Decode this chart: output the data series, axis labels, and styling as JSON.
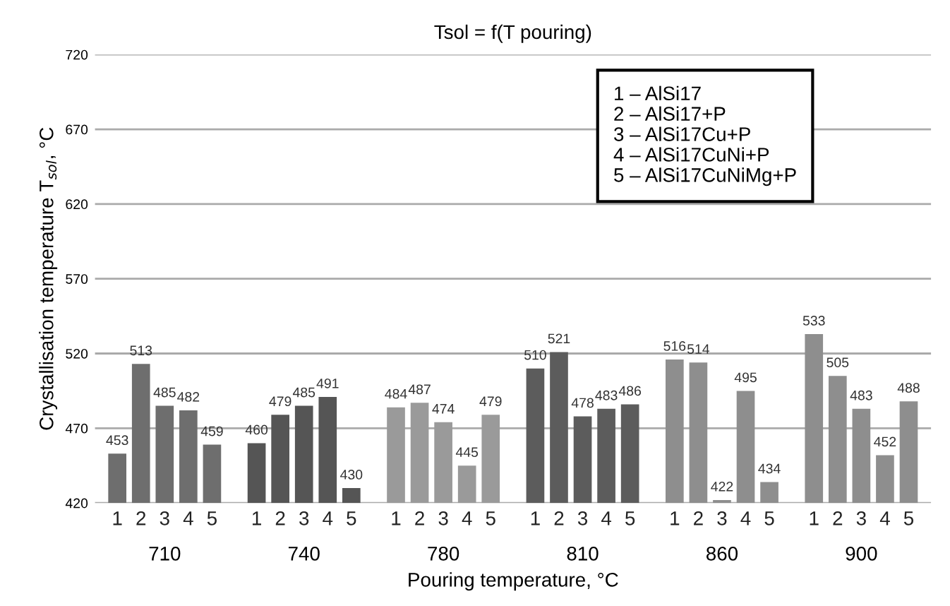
{
  "chart_data": {
    "type": "bar",
    "subtitle": "Tsol = f(T pouring)",
    "xlabel": "Pouring temperature, °C",
    "ylabel": "Crystallisation temperature T$_{sol}$, °C",
    "categories": [
      "710",
      "740",
      "780",
      "810",
      "860",
      "900"
    ],
    "series": [
      {
        "name": "1",
        "colors": [
          "#6e6e6e",
          "#555555",
          "#9a9a9a",
          "#5c5c5c",
          "#8e8e8e",
          "#8e8e8e"
        ],
        "values": [
          453,
          460,
          484,
          510,
          516,
          533
        ]
      },
      {
        "name": "2",
        "colors": [
          "#6e6e6e",
          "#555555",
          "#9a9a9a",
          "#5c5c5c",
          "#8e8e8e",
          "#8e8e8e"
        ],
        "values": [
          513,
          479,
          487,
          521,
          514,
          505
        ]
      },
      {
        "name": "3",
        "colors": [
          "#6e6e6e",
          "#555555",
          "#9a9a9a",
          "#5c5c5c",
          "#8e8e8e",
          "#8e8e8e"
        ],
        "values": [
          485,
          485,
          474,
          478,
          422,
          483
        ]
      },
      {
        "name": "4",
        "colors": [
          "#6e6e6e",
          "#555555",
          "#9a9a9a",
          "#5c5c5c",
          "#8e8e8e",
          "#8e8e8e"
        ],
        "values": [
          482,
          491,
          445,
          483,
          495,
          452
        ]
      },
      {
        "name": "5",
        "colors": [
          "#6e6e6e",
          "#555555",
          "#9a9a9a",
          "#5c5c5c",
          "#8e8e8e",
          "#8e8e8e"
        ],
        "values": [
          459,
          430,
          479,
          486,
          434,
          488
        ]
      }
    ],
    "ylim": [
      420,
      720
    ],
    "yticks": [
      420,
      470,
      520,
      570,
      620,
      670,
      720
    ],
    "grid": "y",
    "data_labels": true,
    "annotations": [
      "1 – AlSi17\n2 – AlSi17+P\n3 – AlSi17Cu+P\n4 – AlSi17CuNi+P\n5 – AlSi17CuNiMg+P"
    ]
  }
}
